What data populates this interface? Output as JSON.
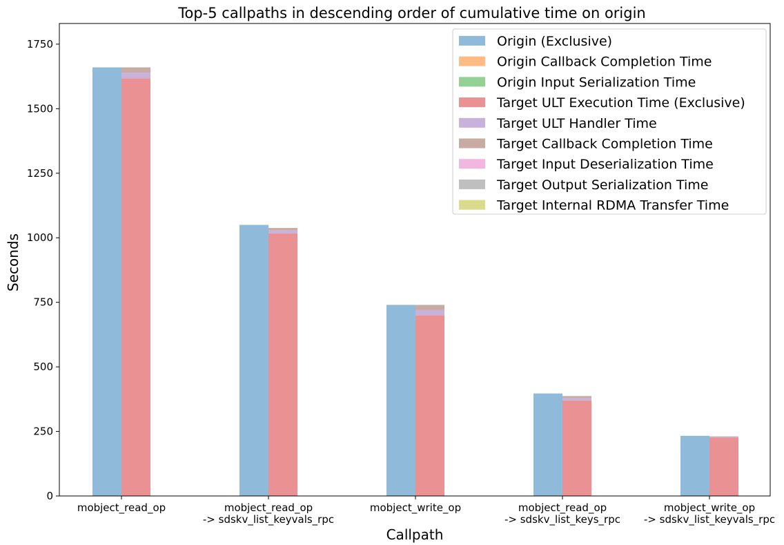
{
  "chart_data": {
    "type": "bar",
    "title": "Top-5 callpaths in descending order of cumulative time on origin",
    "xlabel": "Callpath",
    "ylabel": "Seconds",
    "ylim": [
      0,
      1830
    ],
    "yticks": [
      0,
      250,
      500,
      750,
      1000,
      1250,
      1500,
      1750
    ],
    "grid": false,
    "legend_position": "top-right",
    "categories": [
      [
        "mobject_read_op"
      ],
      [
        "mobject_read_op",
        "-> sdskv_list_keyvals_rpc"
      ],
      [
        "mobject_write_op"
      ],
      [
        "mobject_read_op",
        "-> sdskv_list_keys_rpc"
      ],
      [
        "mobject_write_op",
        "-> sdskv_list_keyvals_rpc"
      ]
    ],
    "series": [
      {
        "name": "Origin (Exclusive)",
        "color": "#8fbad9",
        "group": "origin",
        "values": [
          1660,
          1050,
          740,
          397,
          233
        ]
      },
      {
        "name": "Origin Callback Completion Time",
        "color": "#ffbb84",
        "group": "origin",
        "values": [
          0,
          0,
          0,
          0,
          0
        ]
      },
      {
        "name": "Origin Input Serialization Time",
        "color": "#94d194",
        "group": "origin",
        "values": [
          0,
          0,
          0,
          0,
          0
        ]
      },
      {
        "name": "Target ULT Execution Time (Exclusive)",
        "color": "#ea9293",
        "group": "target",
        "values": [
          1618,
          1017,
          700,
          370,
          226
        ]
      },
      {
        "name": "Target ULT Handler Time",
        "color": "#c8b1da",
        "group": "target",
        "values": [
          22,
          12,
          20,
          10,
          3
        ]
      },
      {
        "name": "Target Callback Completion Time",
        "color": "#c8aba2",
        "group": "target",
        "values": [
          20,
          9,
          20,
          7,
          2
        ]
      },
      {
        "name": "Target Input Deserialization Time",
        "color": "#f2b7e0",
        "group": "target",
        "values": [
          0,
          0,
          0,
          0,
          0
        ]
      },
      {
        "name": "Target Output Serialization Time",
        "color": "#bfbfbf",
        "group": "target",
        "values": [
          0,
          0,
          0,
          0,
          0
        ]
      },
      {
        "name": "Target Internal RDMA Transfer Time",
        "color": "#dbdb8d",
        "group": "target",
        "values": [
          0,
          0,
          0,
          0,
          0
        ]
      }
    ]
  }
}
